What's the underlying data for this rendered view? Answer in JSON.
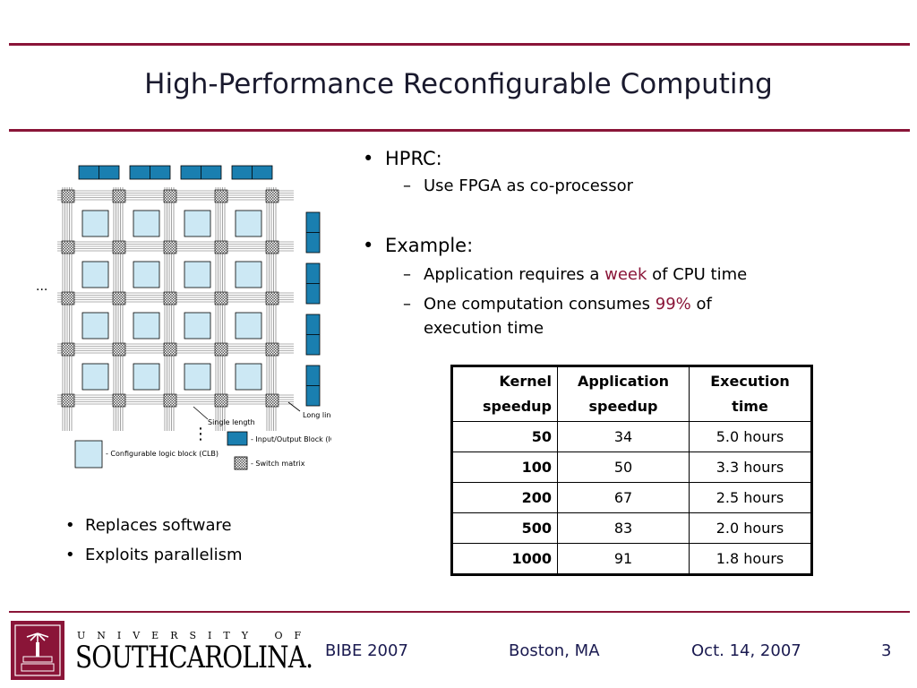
{
  "slide": {
    "title": "High-Performance Reconfigurable Computing",
    "bullets": [
      {
        "text": "HPRC:",
        "subs": [
          "Use FPGA as co-processor"
        ]
      },
      {
        "text": "Example:",
        "subs": []
      }
    ],
    "example_subs": {
      "s1_pre": "Application requires a ",
      "s1_hl": "week",
      "s1_post": " of CPU time",
      "s2_pre": "One computation consumes ",
      "s2_hl": "99%",
      "s2_post": " of",
      "s2_cont": "execution time"
    },
    "left_bullets": [
      "Replaces software",
      "Exploits parallelism"
    ]
  },
  "diagram": {
    "ellipsis_left": "...",
    "ellipsis_bottom": "⋮",
    "label_single_length": "Single length",
    "label_long_lines": "Long lines",
    "legend_iob": "- Input/Output Block (IOB)",
    "legend_clb": "- Configurable logic block (CLB)",
    "legend_switch": "- Switch matrix",
    "colors": {
      "iob": "#1a7fb0",
      "clb": "#cce8f4",
      "grid": "#666666"
    }
  },
  "table": {
    "headers": [
      {
        "l1": "Kernel",
        "l2": "speedup"
      },
      {
        "l1": "Application",
        "l2": "speedup"
      },
      {
        "l1": "Execution",
        "l2": "time"
      }
    ],
    "rows": [
      [
        "50",
        "34",
        "5.0 hours"
      ],
      [
        "100",
        "50",
        "3.3 hours"
      ],
      [
        "200",
        "67",
        "2.5 hours"
      ],
      [
        "500",
        "83",
        "2.0 hours"
      ],
      [
        "1000",
        "91",
        "1.8 hours"
      ]
    ]
  },
  "footer": {
    "university_top": "UNIVERSITY OF",
    "university_main": "SOUTHCAROLINA.",
    "event": "BIBE 2007",
    "location": "Boston, MA",
    "date": "Oct. 14, 2007",
    "page": "3"
  },
  "colors": {
    "accent": "#8a1538"
  }
}
